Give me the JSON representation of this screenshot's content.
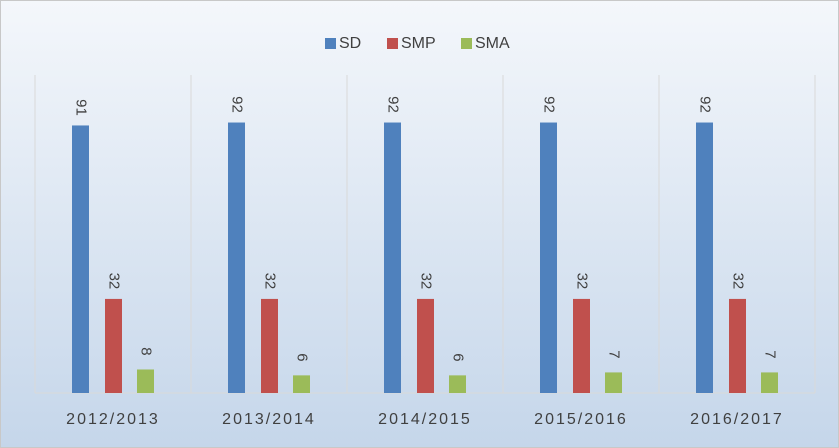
{
  "chart_data": {
    "type": "bar",
    "categories": [
      "2012/2013",
      "2013/2014",
      "2014/2015",
      "2015/2016",
      "2016/2017"
    ],
    "series": [
      {
        "name": "SD",
        "color": "#4f81bd",
        "values": [
          91,
          92,
          92,
          92,
          92
        ]
      },
      {
        "name": "SMP",
        "color": "#c0504d",
        "values": [
          32,
          32,
          32,
          32,
          32
        ]
      },
      {
        "name": "SMA",
        "color": "#9bbb59",
        "values": [
          8,
          6,
          6,
          7,
          7
        ]
      }
    ],
    "ylim": [
      0,
      100
    ],
    "legend": "top"
  }
}
